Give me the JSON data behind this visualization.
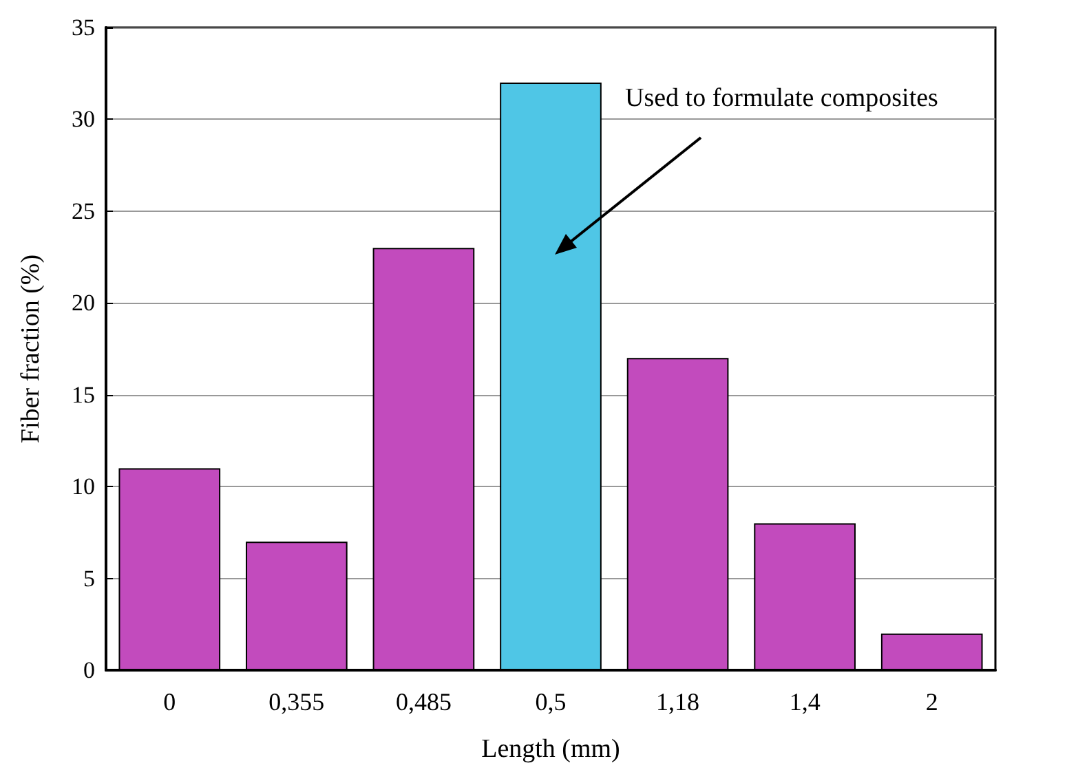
{
  "chart_data": {
    "type": "bar",
    "xlabel": "Length (mm)",
    "ylabel": "Fiber fraction (%)",
    "categories": [
      "0",
      "0,355",
      "0,485",
      "0,5",
      "1,18",
      "1,4",
      "2"
    ],
    "values": [
      11,
      7,
      23,
      32,
      17,
      8,
      2
    ],
    "colors": [
      "#c24bbd",
      "#c24bbd",
      "#c24bbd",
      "#4fc6e6",
      "#c24bbd",
      "#c24bbd",
      "#c24bbd"
    ],
    "ylim": [
      0,
      35
    ],
    "yticks": [
      0,
      5,
      10,
      15,
      20,
      25,
      30,
      35
    ],
    "grid": "y",
    "annotations": [
      "Used to formulate composites"
    ]
  }
}
